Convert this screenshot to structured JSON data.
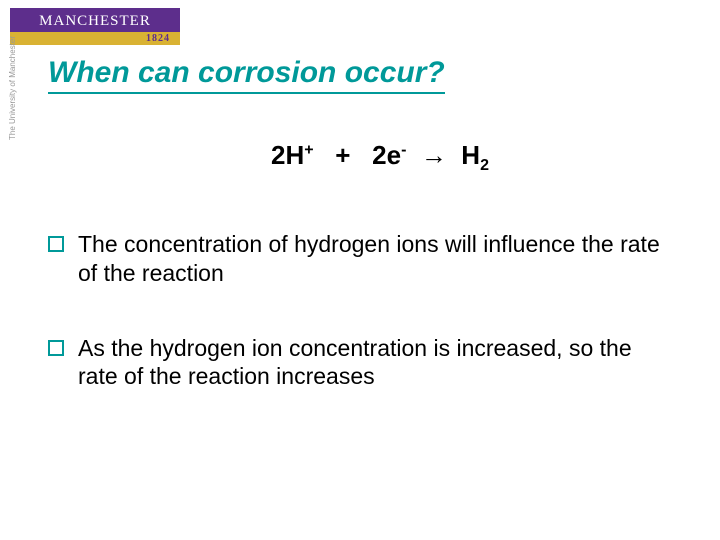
{
  "logo": {
    "name": "MANCHESTER",
    "year": "1824",
    "subtext": "The University of Manchester"
  },
  "title": "When can corrosion occur?",
  "equation": {
    "lhs_coeff1": "2",
    "species1": "H",
    "sup1": "+",
    "plus": "+",
    "lhs_coeff2": "2",
    "species2": "e",
    "sup2": "-",
    "arrow": "→",
    "rhs_species": "H",
    "rhs_sub": "2"
  },
  "bullets": [
    {
      "text": "The concentration of hydrogen ions will influence the rate of the reaction"
    },
    {
      "text": "As the hydrogen ion concentration is increased, so the rate of the reaction increases"
    }
  ],
  "colors": {
    "accent": "#009999",
    "logo_bg": "#5d2e8c",
    "logo_year_bg": "#d9b233",
    "text": "#000000",
    "background": "#ffffff"
  }
}
